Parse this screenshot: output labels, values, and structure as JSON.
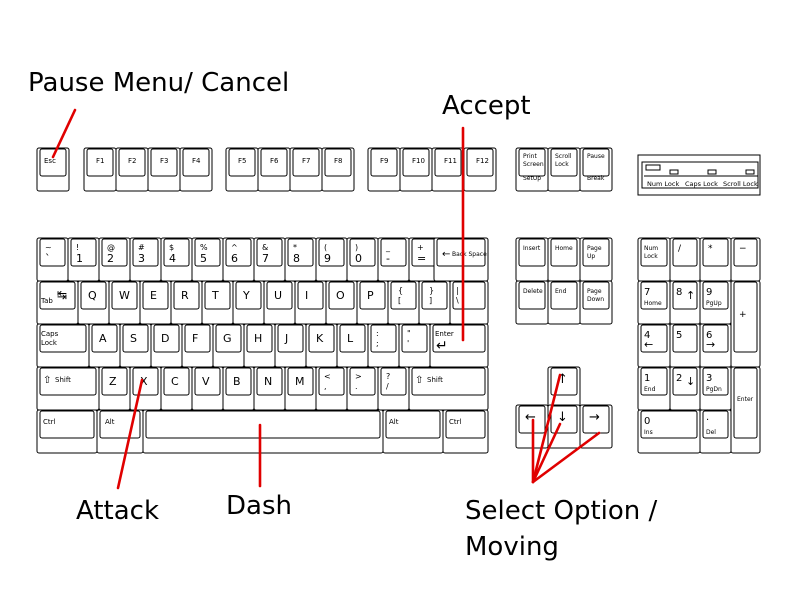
{
  "annotations": {
    "pause": "Pause Menu/ Cancel",
    "accept": "Accept",
    "attack": "Attack",
    "dash": "Dash",
    "select_line1": "Select Option /",
    "select_line2": "Moving"
  },
  "colors": {
    "pointer": "#e00000",
    "key_outline": "#000000",
    "key_face": "#ffffff"
  },
  "function_row": {
    "esc": "Esc",
    "f_keys": [
      "F1",
      "F2",
      "F3",
      "F4",
      "F5",
      "F6",
      "F7",
      "F8",
      "F9",
      "F10",
      "F11",
      "F12"
    ]
  },
  "system_keys": {
    "print_screen": [
      "Print",
      "Screen"
    ],
    "sys_up": "SetUp",
    "scroll_lock": [
      "Scroll",
      "Lock"
    ],
    "pause": "Pause",
    "break": "Break"
  },
  "indicators": [
    "Num Lock",
    "Caps Lock",
    "Scroll Lock"
  ],
  "number_row": {
    "top": [
      "~",
      "!",
      "@",
      "#",
      "$",
      "%",
      "^",
      "&",
      "*",
      "(",
      ")",
      "_",
      "+"
    ],
    "bottom": [
      "`",
      "1",
      "2",
      "3",
      "4",
      "5",
      "6",
      "7",
      "8",
      "9",
      "0",
      "-",
      "="
    ],
    "backspace": "Back Space"
  },
  "qwerty_row": {
    "tab": "Tab",
    "letters": [
      "Q",
      "W",
      "E",
      "R",
      "T",
      "Y",
      "U",
      "I",
      "O",
      "P"
    ],
    "bracket_top": [
      "{",
      "}",
      "|"
    ],
    "bracket_bottom": [
      "[",
      "]",
      "\\"
    ]
  },
  "home_row": {
    "caps": [
      "Caps",
      "Lock"
    ],
    "letters": [
      "A",
      "S",
      "D",
      "F",
      "G",
      "H",
      "J",
      "K",
      "L"
    ],
    "semicolon": [
      ":",
      ";"
    ],
    "quote": [
      "\"",
      "'"
    ],
    "enter": "Enter"
  },
  "shift_row": {
    "shift": "Shift",
    "letters": [
      "Z",
      "X",
      "C",
      "V",
      "B",
      "N",
      "M"
    ],
    "punct_top": [
      "<",
      ">",
      "?"
    ],
    "punct_bottom": [
      ",",
      ".",
      "/"
    ]
  },
  "bottom_row": {
    "ctrl": "Ctrl",
    "alt": "Alt"
  },
  "nav_cluster": {
    "row1": [
      "Insert",
      "Home",
      [
        "Page",
        "Up"
      ]
    ],
    "row2": [
      "Delete",
      "End",
      [
        "Page",
        "Down"
      ]
    ]
  },
  "numpad": {
    "num_lock": [
      "Num",
      "Lock"
    ],
    "slash": "/",
    "star": "*",
    "minus": "−",
    "plus": "+",
    "seven": [
      "7",
      "Home"
    ],
    "eight": "8",
    "nine": [
      "9",
      "PgUp"
    ],
    "four": "4",
    "five": "5",
    "six": "6",
    "one": [
      "1",
      "End"
    ],
    "two": "2",
    "three": [
      "3",
      "PgDn"
    ],
    "zero": [
      "0",
      "Ins"
    ],
    "dot": [
      ".",
      "Del"
    ],
    "enter": "Enter"
  }
}
